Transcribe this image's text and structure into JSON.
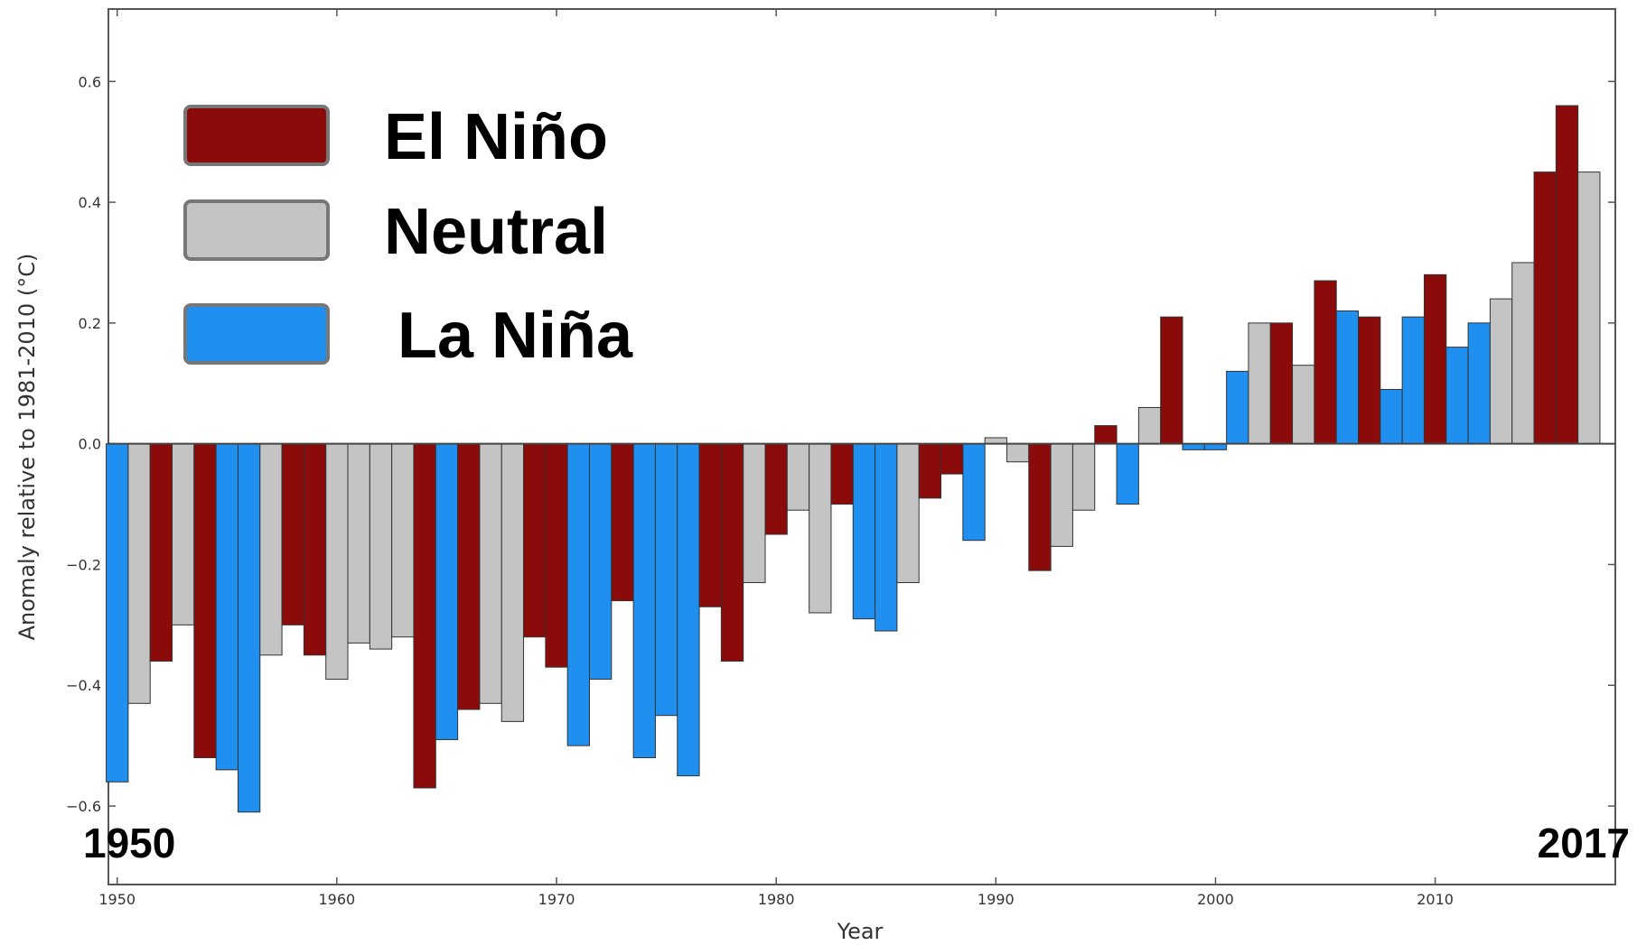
{
  "chart_data": {
    "type": "bar",
    "xlabel": "Year",
    "ylabel": "Anomaly relative to 1981-2010 (°C)",
    "xlim": [
      1949.6,
      2018.2
    ],
    "ylim": [
      -0.73,
      0.72
    ],
    "x_ticks": [
      1950,
      1960,
      1970,
      1980,
      1990,
      2000,
      2010
    ],
    "y_ticks": [
      0.6,
      0.4,
      0.2,
      0.0,
      -0.2,
      -0.4,
      -0.6
    ],
    "y_tick_labels": [
      "0.6",
      "0.4",
      "0.2",
      "0.0",
      "−0.2",
      "−0.4",
      "−0.6"
    ],
    "grid": false,
    "legend_placement": "top-left",
    "colors": {
      "E": "#8b0a0a",
      "N": "#c4c4c4",
      "L": "#1f8ff0"
    },
    "legend": [
      {
        "key": "E",
        "label": "El Niño"
      },
      {
        "key": "N",
        "label": "Neutral"
      },
      {
        "key": "L",
        "label": "La Niña"
      }
    ],
    "range_start": "1950",
    "range_end": "2017",
    "years": [
      1950,
      1951,
      1952,
      1953,
      1954,
      1955,
      1956,
      1957,
      1958,
      1959,
      1960,
      1961,
      1962,
      1963,
      1964,
      1965,
      1966,
      1967,
      1968,
      1969,
      1970,
      1971,
      1972,
      1973,
      1974,
      1975,
      1976,
      1977,
      1978,
      1979,
      1980,
      1981,
      1982,
      1983,
      1984,
      1985,
      1986,
      1987,
      1988,
      1989,
      1990,
      1991,
      1992,
      1993,
      1994,
      1995,
      1996,
      1997,
      1998,
      1999,
      2000,
      2001,
      2002,
      2003,
      2004,
      2005,
      2006,
      2007,
      2008,
      2009,
      2010,
      2011,
      2012,
      2013,
      2014,
      2015,
      2016,
      2017
    ],
    "values": [
      -0.56,
      -0.43,
      -0.36,
      -0.3,
      -0.52,
      -0.54,
      -0.61,
      -0.35,
      -0.3,
      -0.35,
      -0.39,
      -0.33,
      -0.34,
      -0.32,
      -0.57,
      -0.49,
      -0.44,
      -0.43,
      -0.46,
      -0.32,
      -0.37,
      -0.5,
      -0.39,
      -0.26,
      -0.52,
      -0.45,
      -0.55,
      -0.27,
      -0.36,
      -0.23,
      -0.15,
      -0.11,
      -0.28,
      -0.1,
      -0.29,
      -0.31,
      -0.23,
      -0.09,
      -0.05,
      -0.16,
      0.01,
      -0.03,
      -0.21,
      -0.17,
      -0.11,
      0.03,
      -0.1,
      0.06,
      0.21,
      -0.01,
      -0.01,
      0.12,
      0.2,
      0.2,
      0.13,
      0.27,
      0.22,
      0.21,
      0.09,
      0.21,
      0.28,
      0.16,
      0.2,
      0.24,
      0.3,
      0.45,
      0.56,
      0.45
    ],
    "phases": [
      "L",
      "N",
      "E",
      "N",
      "E",
      "L",
      "L",
      "N",
      "E",
      "E",
      "N",
      "N",
      "N",
      "N",
      "E",
      "L",
      "E",
      "N",
      "N",
      "E",
      "E",
      "L",
      "L",
      "E",
      "L",
      "L",
      "L",
      "E",
      "E",
      "N",
      "E",
      "N",
      "N",
      "E",
      "L",
      "L",
      "N",
      "E",
      "E",
      "L",
      "N",
      "N",
      "E",
      "N",
      "N",
      "E",
      "L",
      "N",
      "E",
      "L",
      "L",
      "L",
      "N",
      "E",
      "N",
      "E",
      "L",
      "E",
      "L",
      "L",
      "E",
      "L",
      "L",
      "N",
      "N",
      "E",
      "E",
      "N"
    ]
  }
}
